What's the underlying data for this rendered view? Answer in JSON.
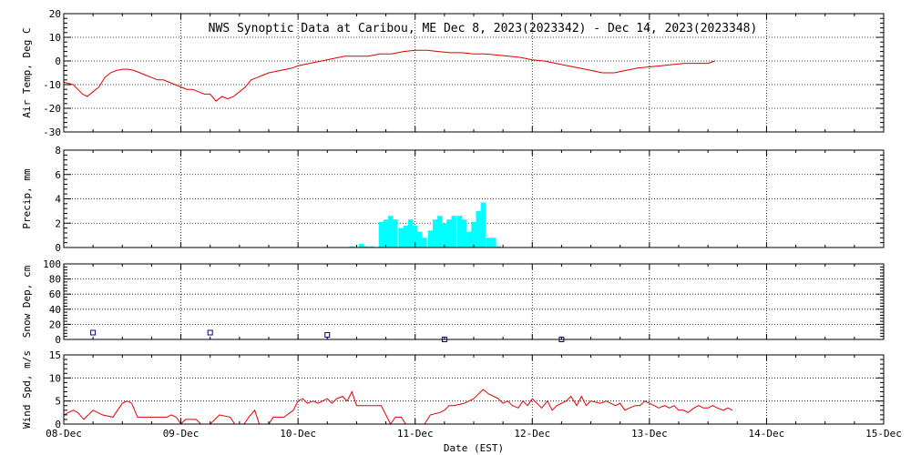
{
  "title": "NWS Synoptic Data at Caribou, ME   Dec  8, 2023(2023342) - Dec 14, 2023(2023348)",
  "xlabel": "Date (EST)",
  "colors": {
    "line": "#dd0000",
    "precip": "#00ffff",
    "snow_marker": "#00008b",
    "axis": "#000000"
  },
  "chart_data": [
    {
      "type": "line",
      "ylabel": "Air Temp, Deg C",
      "ylim": [
        -30,
        20
      ],
      "yticks": [
        -30,
        -20,
        -10,
        0,
        10,
        20
      ],
      "grid": true,
      "x_units": "days since 08-Dec",
      "series": [
        {
          "points": [
            [
              0,
              -9
            ],
            [
              0.08,
              -10
            ],
            [
              0.12,
              -12
            ],
            [
              0.16,
              -14
            ],
            [
              0.2,
              -15
            ],
            [
              0.25,
              -13
            ],
            [
              0.3,
              -11
            ],
            [
              0.35,
              -7
            ],
            [
              0.4,
              -5
            ],
            [
              0.45,
              -4
            ],
            [
              0.5,
              -3.5
            ],
            [
              0.55,
              -3.5
            ],
            [
              0.6,
              -4
            ],
            [
              0.65,
              -5
            ],
            [
              0.7,
              -6
            ],
            [
              0.75,
              -7
            ],
            [
              0.8,
              -8
            ],
            [
              0.85,
              -8
            ],
            [
              0.9,
              -9
            ],
            [
              0.95,
              -10
            ],
            [
              1.0,
              -11
            ],
            [
              1.05,
              -12
            ],
            [
              1.1,
              -12
            ],
            [
              1.15,
              -13
            ],
            [
              1.2,
              -14
            ],
            [
              1.25,
              -14
            ],
            [
              1.3,
              -17
            ],
            [
              1.35,
              -15
            ],
            [
              1.4,
              -16
            ],
            [
              1.45,
              -15
            ],
            [
              1.5,
              -13
            ],
            [
              1.55,
              -11
            ],
            [
              1.6,
              -8
            ],
            [
              1.65,
              -7
            ],
            [
              1.7,
              -6
            ],
            [
              1.75,
              -5
            ],
            [
              1.8,
              -4.5
            ],
            [
              1.85,
              -4
            ],
            [
              1.9,
              -3.5
            ],
            [
              1.95,
              -3
            ],
            [
              2.0,
              -2
            ],
            [
              2.1,
              -1
            ],
            [
              2.2,
              0
            ],
            [
              2.3,
              1
            ],
            [
              2.4,
              2
            ],
            [
              2.5,
              2
            ],
            [
              2.6,
              2
            ],
            [
              2.7,
              3
            ],
            [
              2.8,
              3
            ],
            [
              2.9,
              4
            ],
            [
              3.0,
              4.5
            ],
            [
              3.1,
              4.5
            ],
            [
              3.2,
              4
            ],
            [
              3.3,
              3.5
            ],
            [
              3.4,
              3.5
            ],
            [
              3.5,
              3
            ],
            [
              3.6,
              3
            ],
            [
              3.7,
              2.5
            ],
            [
              3.8,
              2
            ],
            [
              3.9,
              1.5
            ],
            [
              4.0,
              0.5
            ],
            [
              4.1,
              0
            ],
            [
              4.2,
              -1
            ],
            [
              4.3,
              -2
            ],
            [
              4.4,
              -3
            ],
            [
              4.5,
              -4
            ],
            [
              4.6,
              -5
            ],
            [
              4.7,
              -5
            ],
            [
              4.8,
              -4
            ],
            [
              4.9,
              -3
            ],
            [
              5.0,
              -2.5
            ],
            [
              5.1,
              -2
            ],
            [
              5.2,
              -1.5
            ],
            [
              5.3,
              -1
            ],
            [
              5.4,
              -1
            ],
            [
              5.5,
              -1
            ],
            [
              5.56,
              0
            ]
          ]
        }
      ]
    },
    {
      "type": "bar",
      "ylabel": "Precip, mm",
      "ylim": [
        0,
        8
      ],
      "yticks": [
        0,
        2,
        4,
        6,
        8
      ],
      "grid": true,
      "x_units": "days since 08-Dec",
      "bin_width_days": 0.0417,
      "x": [
        2.46,
        2.54,
        2.58,
        2.63,
        2.71,
        2.75,
        2.79,
        2.83,
        2.88,
        2.92,
        2.96,
        3.0,
        3.04,
        3.08,
        3.13,
        3.17,
        3.21,
        3.25,
        3.29,
        3.33,
        3.38,
        3.42,
        3.46,
        3.5,
        3.54,
        3.58,
        3.63,
        3.67,
        3.71
      ],
      "values": [
        0.1,
        0.3,
        0.1,
        0.1,
        2.1,
        2.3,
        2.6,
        2.3,
        1.6,
        1.8,
        2.3,
        1.8,
        1.3,
        0.8,
        1.4,
        2.3,
        2.6,
        2.0,
        2.3,
        2.6,
        2.6,
        2.3,
        1.3,
        2.1,
        3.0,
        3.7,
        0.8,
        0.8,
        0.1
      ]
    },
    {
      "type": "scatter",
      "ylabel": "Snow Dep, cm",
      "ylim": [
        0,
        100
      ],
      "yticks": [
        0,
        20,
        40,
        60,
        80,
        100
      ],
      "grid": true,
      "x_units": "days since 08-Dec",
      "x": [
        0.25,
        1.25,
        2.25,
        3.25,
        4.25
      ],
      "values": [
        9,
        9,
        6,
        0,
        0
      ]
    },
    {
      "type": "line",
      "ylabel": "Wind Spd, m/s",
      "ylim": [
        0,
        15
      ],
      "yticks": [
        0,
        5,
        10,
        15
      ],
      "grid": true,
      "x_units": "days since 08-Dec",
      "series": [
        {
          "points": [
            [
              0,
              2
            ],
            [
              0.08,
              3
            ],
            [
              0.12,
              2.5
            ],
            [
              0.17,
              1
            ],
            [
              0.21,
              2
            ],
            [
              0.25,
              3
            ],
            [
              0.33,
              2
            ],
            [
              0.42,
              1.5
            ],
            [
              0.46,
              3
            ],
            [
              0.5,
              4.5
            ],
            [
              0.54,
              5
            ],
            [
              0.58,
              4.5
            ],
            [
              0.63,
              1.5
            ],
            [
              0.75,
              1.5
            ],
            [
              0.88,
              1.5
            ],
            [
              0.92,
              2
            ],
            [
              0.96,
              1.5
            ],
            [
              1.0,
              0
            ],
            [
              1.04,
              1
            ],
            [
              1.13,
              1
            ],
            [
              1.17,
              0
            ],
            [
              1.25,
              0
            ],
            [
              1.33,
              2
            ],
            [
              1.42,
              1.5
            ],
            [
              1.46,
              0
            ],
            [
              1.54,
              0
            ],
            [
              1.58,
              1.5
            ],
            [
              1.63,
              3
            ],
            [
              1.67,
              0
            ],
            [
              1.75,
              0
            ],
            [
              1.79,
              1.5
            ],
            [
              1.88,
              1.5
            ],
            [
              1.96,
              3
            ],
            [
              2.0,
              5
            ],
            [
              2.04,
              5.5
            ],
            [
              2.08,
              4.5
            ],
            [
              2.13,
              5
            ],
            [
              2.17,
              4.5
            ],
            [
              2.21,
              5
            ],
            [
              2.25,
              5.5
            ],
            [
              2.29,
              4.5
            ],
            [
              2.33,
              5.5
            ],
            [
              2.38,
              6
            ],
            [
              2.42,
              5
            ],
            [
              2.46,
              7
            ],
            [
              2.5,
              4
            ],
            [
              2.54,
              4
            ],
            [
              2.63,
              4
            ],
            [
              2.71,
              4
            ],
            [
              2.75,
              2
            ],
            [
              2.79,
              0
            ],
            [
              2.83,
              1.5
            ],
            [
              2.88,
              1.5
            ],
            [
              2.92,
              0
            ],
            [
              2.96,
              0
            ],
            [
              3.08,
              0
            ],
            [
              3.13,
              2
            ],
            [
              3.21,
              2.5
            ],
            [
              3.25,
              3
            ],
            [
              3.29,
              4
            ],
            [
              3.33,
              4
            ],
            [
              3.42,
              4.5
            ],
            [
              3.5,
              5.5
            ],
            [
              3.58,
              7.5
            ],
            [
              3.63,
              6.5
            ],
            [
              3.71,
              5.5
            ],
            [
              3.75,
              4.5
            ],
            [
              3.79,
              5
            ],
            [
              3.83,
              4
            ],
            [
              3.88,
              3.5
            ],
            [
              3.92,
              5
            ],
            [
              3.96,
              4
            ],
            [
              4.0,
              5.5
            ],
            [
              4.04,
              4.5
            ],
            [
              4.08,
              3.5
            ],
            [
              4.13,
              5
            ],
            [
              4.17,
              3
            ],
            [
              4.21,
              4
            ],
            [
              4.25,
              4.5
            ],
            [
              4.29,
              5
            ],
            [
              4.33,
              6
            ],
            [
              4.38,
              4
            ],
            [
              4.42,
              6
            ],
            [
              4.46,
              4
            ],
            [
              4.5,
              5
            ],
            [
              4.58,
              4.5
            ],
            [
              4.63,
              5
            ],
            [
              4.67,
              4.5
            ],
            [
              4.71,
              4
            ],
            [
              4.75,
              4.5
            ],
            [
              4.79,
              3
            ],
            [
              4.83,
              3.5
            ],
            [
              4.88,
              4
            ],
            [
              4.92,
              4
            ],
            [
              4.96,
              5
            ],
            [
              5.0,
              4.5
            ],
            [
              5.04,
              4
            ],
            [
              5.08,
              3.5
            ],
            [
              5.13,
              4
            ],
            [
              5.17,
              3.5
            ],
            [
              5.21,
              4
            ],
            [
              5.25,
              3
            ],
            [
              5.29,
              3
            ],
            [
              5.33,
              2.5
            ],
            [
              5.38,
              3.5
            ],
            [
              5.42,
              4
            ],
            [
              5.46,
              3.5
            ],
            [
              5.5,
              3.5
            ],
            [
              5.54,
              4
            ],
            [
              5.58,
              3.5
            ],
            [
              5.63,
              3
            ],
            [
              5.67,
              3.5
            ],
            [
              5.71,
              3
            ]
          ]
        }
      ]
    }
  ],
  "x_tick_labels": [
    "08-Dec",
    "09-Dec",
    "10-Dec",
    "11-Dec",
    "12-Dec",
    "13-Dec",
    "14-Dec",
    "15-Dec"
  ],
  "xlim": [
    0,
    7
  ]
}
